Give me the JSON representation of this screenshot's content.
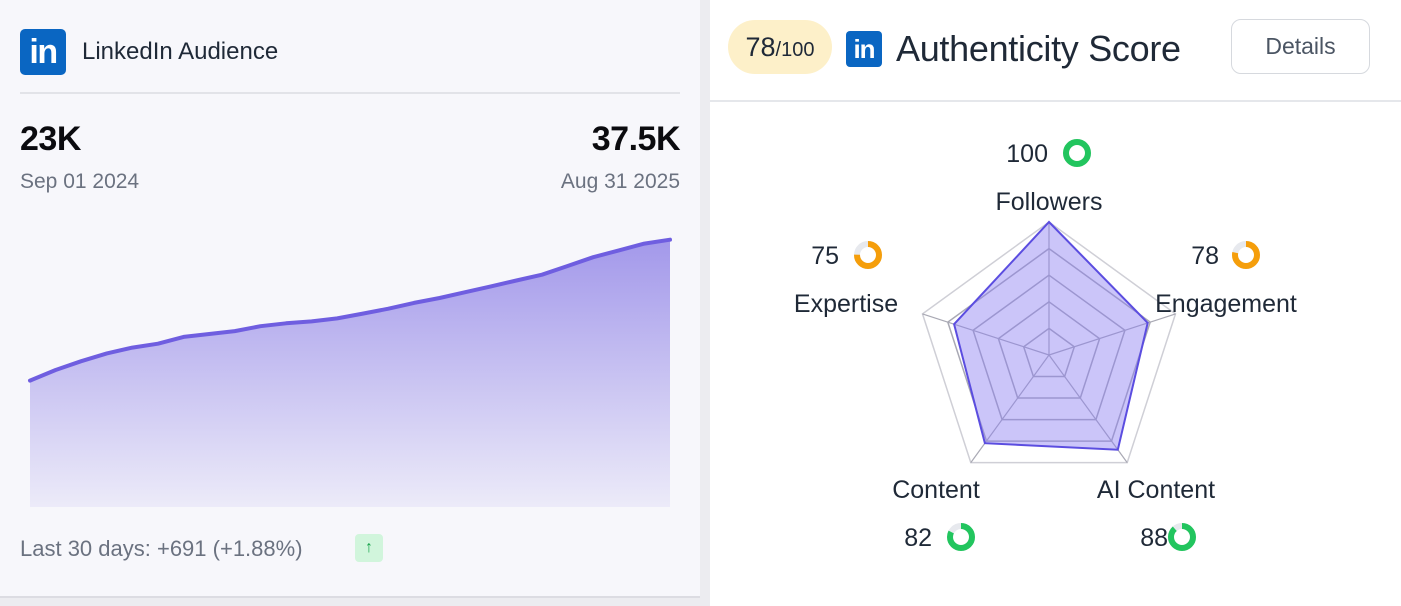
{
  "left_card": {
    "title": "LinkedIn Audience",
    "logo_icon": "linkedin-logo-icon",
    "logo_text": "in",
    "start": {
      "value": "23K",
      "date": "Sep 01 2024"
    },
    "end": {
      "value": "37.5K",
      "date": "Aug 31 2025"
    },
    "footer": "Last 30 days: +691 (+1.88%)",
    "trend_icon": "arrow-up-icon",
    "trend_glyph": "↑"
  },
  "right_card": {
    "score_value": "78",
    "score_max": "/100",
    "logo_icon": "linkedin-logo-icon",
    "logo_text": "in",
    "title": "Authenticity Score",
    "details_label": "Details"
  },
  "chart_data": [
    {
      "type": "area",
      "series": [
        {
          "values": [
            23000,
            24100,
            25000,
            25800,
            26400,
            26800,
            27500,
            27800,
            28100,
            28600,
            28900,
            29100,
            29400,
            29900,
            30400,
            31000,
            31500,
            32100,
            32700,
            33300,
            33900,
            34800,
            35700,
            36400,
            37100,
            37500
          ]
        }
      ],
      "color": "#6f5ee0",
      "grid": false
    },
    {
      "type": "radar",
      "axes": [
        "Followers",
        "Engagement",
        "AI Content",
        "Content",
        "Expertise"
      ],
      "values": [
        100,
        78,
        88,
        82,
        75
      ],
      "max": 100,
      "status_colors": [
        "#22c55e",
        "#f59e0b",
        "#22c55e",
        "#22c55e",
        "#f59e0b"
      ],
      "fill_color": "#8b7ef2",
      "line_color": "#5b4de0"
    }
  ]
}
